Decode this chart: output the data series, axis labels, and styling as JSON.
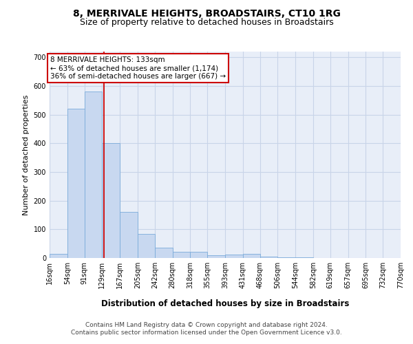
{
  "title": "8, MERRIVALE HEIGHTS, BROADSTAIRS, CT10 1RG",
  "subtitle": "Size of property relative to detached houses in Broadstairs",
  "xlabel": "Distribution of detached houses by size in Broadstairs",
  "ylabel": "Number of detached properties",
  "bin_edges": [
    16,
    54,
    91,
    129,
    167,
    205,
    242,
    280,
    318,
    355,
    393,
    431,
    468,
    506,
    544,
    582,
    619,
    657,
    695,
    732,
    770
  ],
  "bar_heights": [
    15,
    520,
    580,
    400,
    160,
    85,
    35,
    22,
    22,
    10,
    13,
    15,
    5,
    2,
    2,
    0,
    0,
    0,
    0,
    0
  ],
  "bar_color": "#c8d8f0",
  "bar_edge_color": "#7aabda",
  "property_size": 133,
  "property_line_color": "#cc0000",
  "annotation_box_color": "#cc0000",
  "annotation_text": "8 MERRIVALE HEIGHTS: 133sqm\n← 63% of detached houses are smaller (1,174)\n36% of semi-detached houses are larger (667) →",
  "annotation_fontsize": 7.5,
  "ylim": [
    0,
    720
  ],
  "yticks": [
    0,
    100,
    200,
    300,
    400,
    500,
    600,
    700
  ],
  "grid_color": "#c8d4e8",
  "background_color": "#e8eef8",
  "footer_text": "Contains HM Land Registry data © Crown copyright and database right 2024.\nContains public sector information licensed under the Open Government Licence v3.0.",
  "title_fontsize": 10,
  "subtitle_fontsize": 9,
  "xlabel_fontsize": 8.5,
  "ylabel_fontsize": 8,
  "tick_labelsize": 7,
  "footer_fontsize": 6.5
}
